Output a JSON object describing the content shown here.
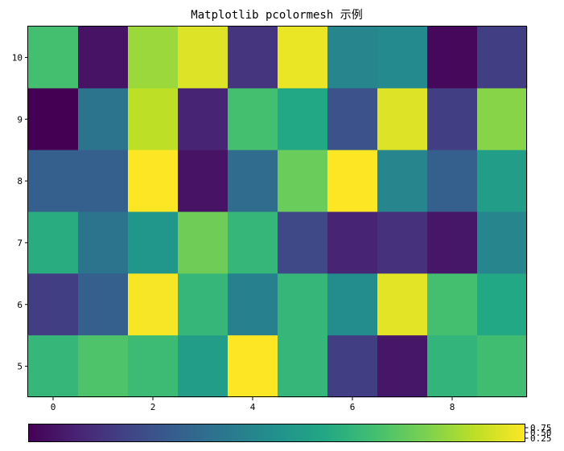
{
  "chart_data": {
    "type": "heatmap",
    "title": "Matplotlib pcolormesh 示例",
    "xlabel": "",
    "ylabel": "",
    "colormap": "viridis",
    "x_edges": [
      -0.5,
      9.5
    ],
    "y_edges": [
      4.5,
      10.5
    ],
    "x_ticks": [
      0,
      2,
      4,
      6,
      8
    ],
    "y_ticks": [
      5,
      6,
      7,
      8,
      9,
      10
    ],
    "value_range": [
      0.0,
      1.0
    ],
    "rows_top_to_bottom": [
      [
        0.7,
        0.05,
        0.85,
        0.95,
        0.15,
        0.97,
        0.45,
        0.47,
        0.02,
        0.18
      ],
      [
        0.0,
        0.38,
        0.9,
        0.1,
        0.7,
        0.6,
        0.25,
        0.95,
        0.18,
        0.82
      ],
      [
        0.3,
        0.3,
        1.0,
        0.05,
        0.35,
        0.77,
        1.0,
        0.45,
        0.3,
        0.55
      ],
      [
        0.62,
        0.38,
        0.52,
        0.78,
        0.66,
        0.22,
        0.1,
        0.14,
        0.06,
        0.45
      ],
      [
        0.18,
        0.3,
        0.99,
        0.66,
        0.43,
        0.66,
        0.48,
        0.96,
        0.7,
        0.6
      ],
      [
        0.66,
        0.72,
        0.68,
        0.55,
        1.0,
        0.66,
        0.18,
        0.06,
        0.65,
        0.69
      ]
    ],
    "colorbar": {
      "orientation": "horizontal",
      "ticks": [
        0.25,
        0.5,
        0.75
      ],
      "tick_labels": [
        "0.25",
        "0.50",
        "0.75"
      ]
    }
  }
}
